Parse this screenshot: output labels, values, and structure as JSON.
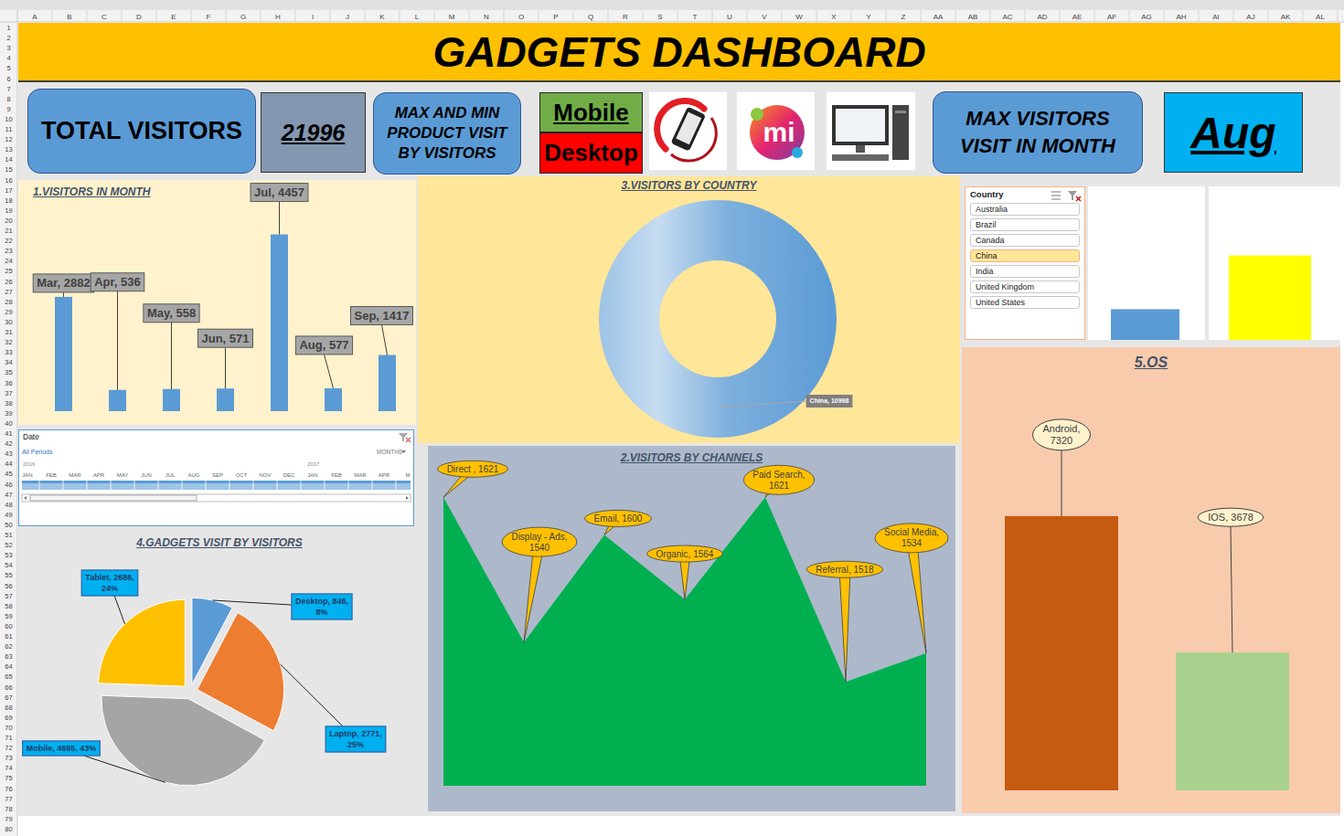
{
  "sheet": {
    "columns": [
      "A",
      "B",
      "C",
      "D",
      "E",
      "F",
      "G",
      "H",
      "I",
      "J",
      "K",
      "L",
      "M",
      "N",
      "O",
      "P",
      "Q",
      "R",
      "S",
      "T",
      "U",
      "V",
      "W",
      "X",
      "Y",
      "Z",
      "AA",
      "AB",
      "AC",
      "AD",
      "AE",
      "AF",
      "AG",
      "AH",
      "AI",
      "AJ",
      "AK",
      "AL"
    ],
    "rows": [
      1,
      2,
      3,
      4,
      5,
      6,
      7,
      8,
      9,
      10,
      11,
      12,
      13,
      14,
      15,
      16,
      17,
      18,
      19,
      20,
      21,
      22,
      23,
      24,
      25,
      26,
      27,
      28,
      29,
      30,
      31,
      32,
      33,
      34,
      35,
      36,
      37,
      38,
      39,
      40,
      41,
      42,
      43,
      44,
      45,
      46,
      47,
      48,
      49,
      50,
      51,
      52,
      53,
      54,
      55,
      56,
      57,
      58,
      59,
      60,
      61,
      62,
      63,
      64,
      65,
      66,
      67,
      68,
      69,
      70,
      71,
      72,
      73,
      74,
      75,
      76,
      77,
      78,
      79,
      80
    ]
  },
  "header": {
    "title": "GADGETS DASHBOARD"
  },
  "kpis": {
    "total_label": "TOTAL VISITORS",
    "total_value": 21996,
    "max_min_label": "MAX AND MIN PRODUCT VISIT BY VISITORS",
    "max_product": "Mobile",
    "min_product": "Desktop",
    "logo_text": "mi",
    "max_month_label": "MAX VISITORS VISIT IN MONTH",
    "max_month": "Aug"
  },
  "slicers": {
    "country": {
      "title": "Country",
      "items": [
        "Australia",
        "Brazil",
        "Canada",
        "China",
        "India",
        "United Kingdom",
        "United States"
      ],
      "selected": "China"
    },
    "timeline": {
      "title": "Date",
      "period": "All Periods",
      "level": "MONTHS",
      "years": [
        "2016",
        "2017"
      ],
      "months": [
        "JAN",
        "FEB",
        "MAR",
        "APR",
        "MAY",
        "JUN",
        "JUL",
        "AUG",
        "SEP",
        "OCT",
        "NOV",
        "DEC",
        "JAN",
        "FEB",
        "MAR",
        "APR",
        "M"
      ]
    }
  },
  "chart_data": [
    {
      "type": "bar",
      "title": "1.VISITORS IN MONTH",
      "categories": [
        "Mar",
        "Apr",
        "May",
        "Jun",
        "Jul",
        "Aug",
        "Sep"
      ],
      "values": [
        2882,
        536,
        558,
        571,
        4457,
        577,
        1417
      ],
      "value_labels": [
        "Mar, 2882",
        "Apr, 536",
        "May, 558",
        "Jun, 571",
        "Jul, 4457",
        "Aug, 577",
        "Sep, 1417"
      ],
      "data_labels": true,
      "color": "#5B9BD5",
      "ylim": [
        0,
        5000
      ],
      "tick_labels": false
    },
    {
      "type": "area",
      "title": "2.VISITORS BY CHANNELS",
      "categories": [
        "Direct",
        "Display - Ads",
        "Email",
        "Organic",
        "Paid Search",
        "Referral",
        "Social Media"
      ],
      "values": [
        1621,
        1540,
        1600,
        1564,
        1621,
        1518,
        1534
      ],
      "value_labels": [
        "Direct , 1621",
        "Display - Ads, 1540",
        "Email, 1600",
        "Organic, 1564",
        "Paid Search, 1621",
        "Referral, 1518",
        "Social Media, 1534"
      ],
      "data_labels": true,
      "color": "#00B050",
      "ylim": [
        1460,
        1640
      ],
      "tick_labels": false
    },
    {
      "type": "doughnut",
      "title": "3.VISITORS BY COUNTRY",
      "categories": [
        "China"
      ],
      "values": [
        10998
      ],
      "value_labels": [
        "China, 10998"
      ],
      "data_labels": true,
      "color": "#5B9BD5"
    },
    {
      "type": "pie",
      "title": "4.GADGETS VISIT BY VISITORS",
      "categories": [
        "Desktop",
        "Laptop",
        "Mobile",
        "Tablet"
      ],
      "values": [
        846,
        2771,
        4695,
        2686
      ],
      "value_labels": [
        "Desktop, 846, 8%",
        "Laptop, 2771, 25%",
        "Mobile, 4695, 43%",
        "Tablet, 2686, 24%"
      ],
      "data_labels": true,
      "colors": [
        "#5B9BD5",
        "#ED7D31",
        "#A5A5A5",
        "#FFC000"
      ]
    },
    {
      "type": "bar",
      "title": "5.OS",
      "categories": [
        "Android",
        "IOS"
      ],
      "values": [
        7320,
        3678
      ],
      "value_labels": [
        "Android, 7320",
        "IOS, 3678"
      ],
      "data_labels": true,
      "colors": [
        "#C55A11",
        "#A9D18E"
      ],
      "ylim": [
        0,
        10000
      ],
      "tick_labels": false
    },
    {
      "type": "bar",
      "categories": [
        null
      ],
      "values": [
        20
      ],
      "color": "#5B9BD5",
      "ylim": [
        0,
        100
      ],
      "tick_labels": false
    },
    {
      "type": "bar",
      "categories": [
        null
      ],
      "values": [
        55
      ],
      "color": "#FFFF00",
      "ylim": [
        0,
        100
      ],
      "tick_labels": false
    }
  ]
}
